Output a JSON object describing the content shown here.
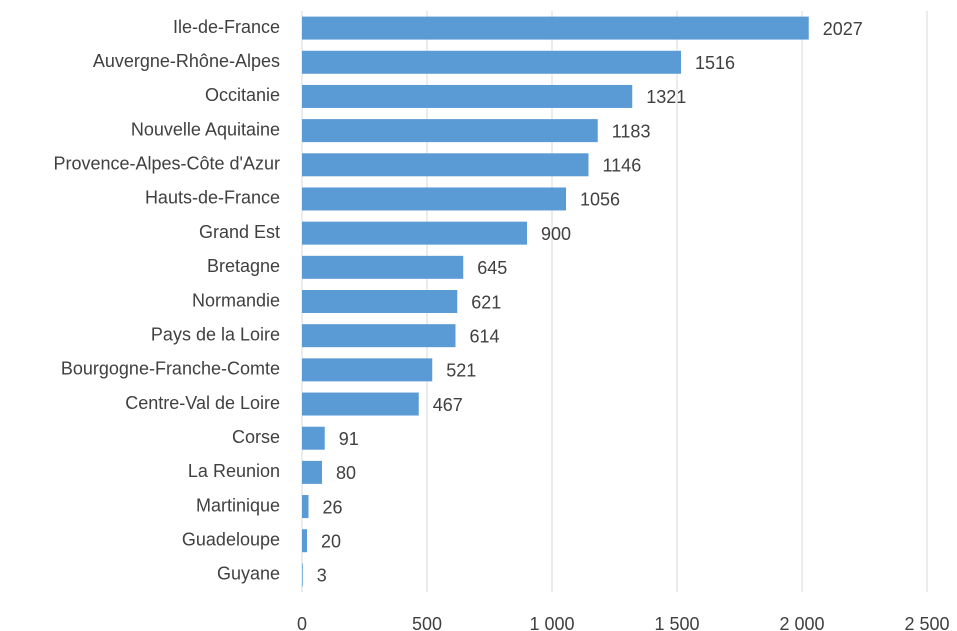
{
  "chart_data": {
    "type": "bar",
    "orientation": "horizontal",
    "categories": [
      "Ile-de-France",
      "Auvergne-Rhône-Alpes",
      "Occitanie",
      "Nouvelle Aquitaine",
      "Provence-Alpes-Côte d'Azur",
      "Hauts-de-France",
      "Grand Est",
      "Bretagne",
      "Normandie",
      "Pays de la Loire",
      "Bourgogne-Franche-Comte",
      "Centre-Val de Loire",
      "Corse",
      "La Reunion",
      "Martinique",
      "Guadeloupe",
      "Guyane"
    ],
    "values": [
      2027,
      1516,
      1321,
      1183,
      1146,
      1056,
      900,
      645,
      621,
      614,
      521,
      467,
      91,
      80,
      26,
      20,
      3
    ],
    "color": "#5b9bd5",
    "xlim": [
      0,
      2500
    ],
    "xticks": [
      0,
      500,
      {
        "value": 1000,
        "label": "1 000"
      },
      {
        "value": 1500,
        "label": "1 500"
      },
      {
        "value": 2000,
        "label": "2 000"
      },
      {
        "value": 2500,
        "label": "2 500"
      }
    ],
    "grid": true
  }
}
